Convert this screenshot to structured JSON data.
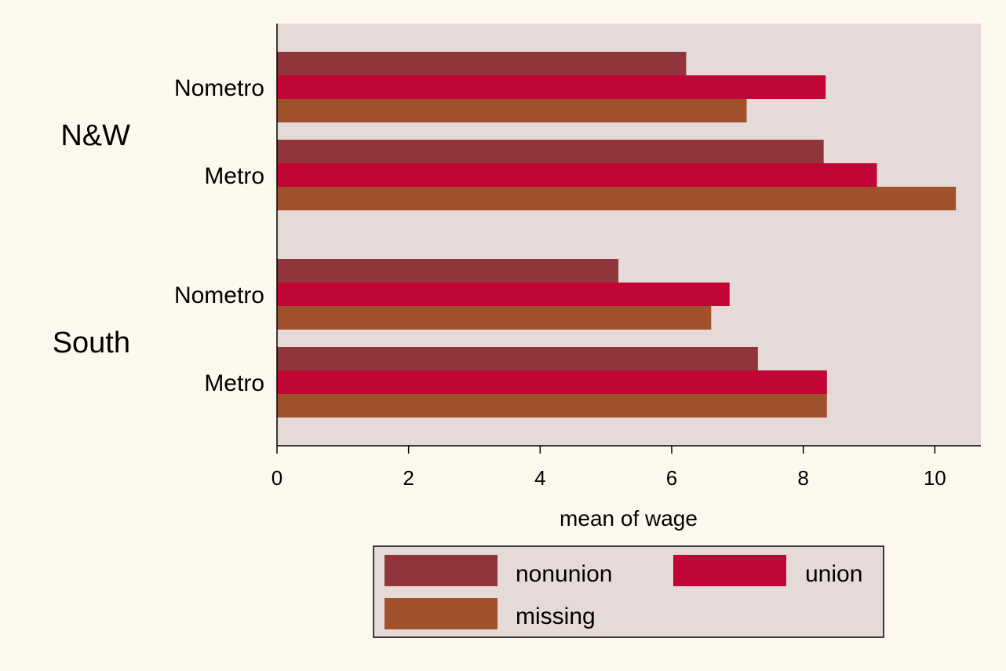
{
  "chart_data": {
    "type": "bar",
    "orientation": "horizontal",
    "title": "",
    "xlabel": "mean of wage",
    "ylabel": "",
    "xlim": [
      0,
      10.7
    ],
    "xticks": [
      0,
      2,
      4,
      6,
      8,
      10
    ],
    "grid": false,
    "legend_position": "bottom",
    "groups": [
      {
        "label": "N&W",
        "categories": [
          "Nometro",
          "Metro"
        ]
      },
      {
        "label": "South",
        "categories": [
          "Nometro",
          "Metro"
        ]
      }
    ],
    "series": [
      {
        "name": "nonunion",
        "color": "#90353b",
        "values": [
          6.22,
          8.31,
          5.19,
          7.31
        ]
      },
      {
        "name": "union",
        "color": "#c10534",
        "values": [
          8.34,
          9.12,
          6.88,
          8.36
        ]
      },
      {
        "name": "missing",
        "color": "#a0522d",
        "values": [
          7.14,
          10.32,
          6.6,
          8.36
        ]
      }
    ],
    "plot_background": "#e6dad8",
    "page_background": "#fdf8ee"
  }
}
